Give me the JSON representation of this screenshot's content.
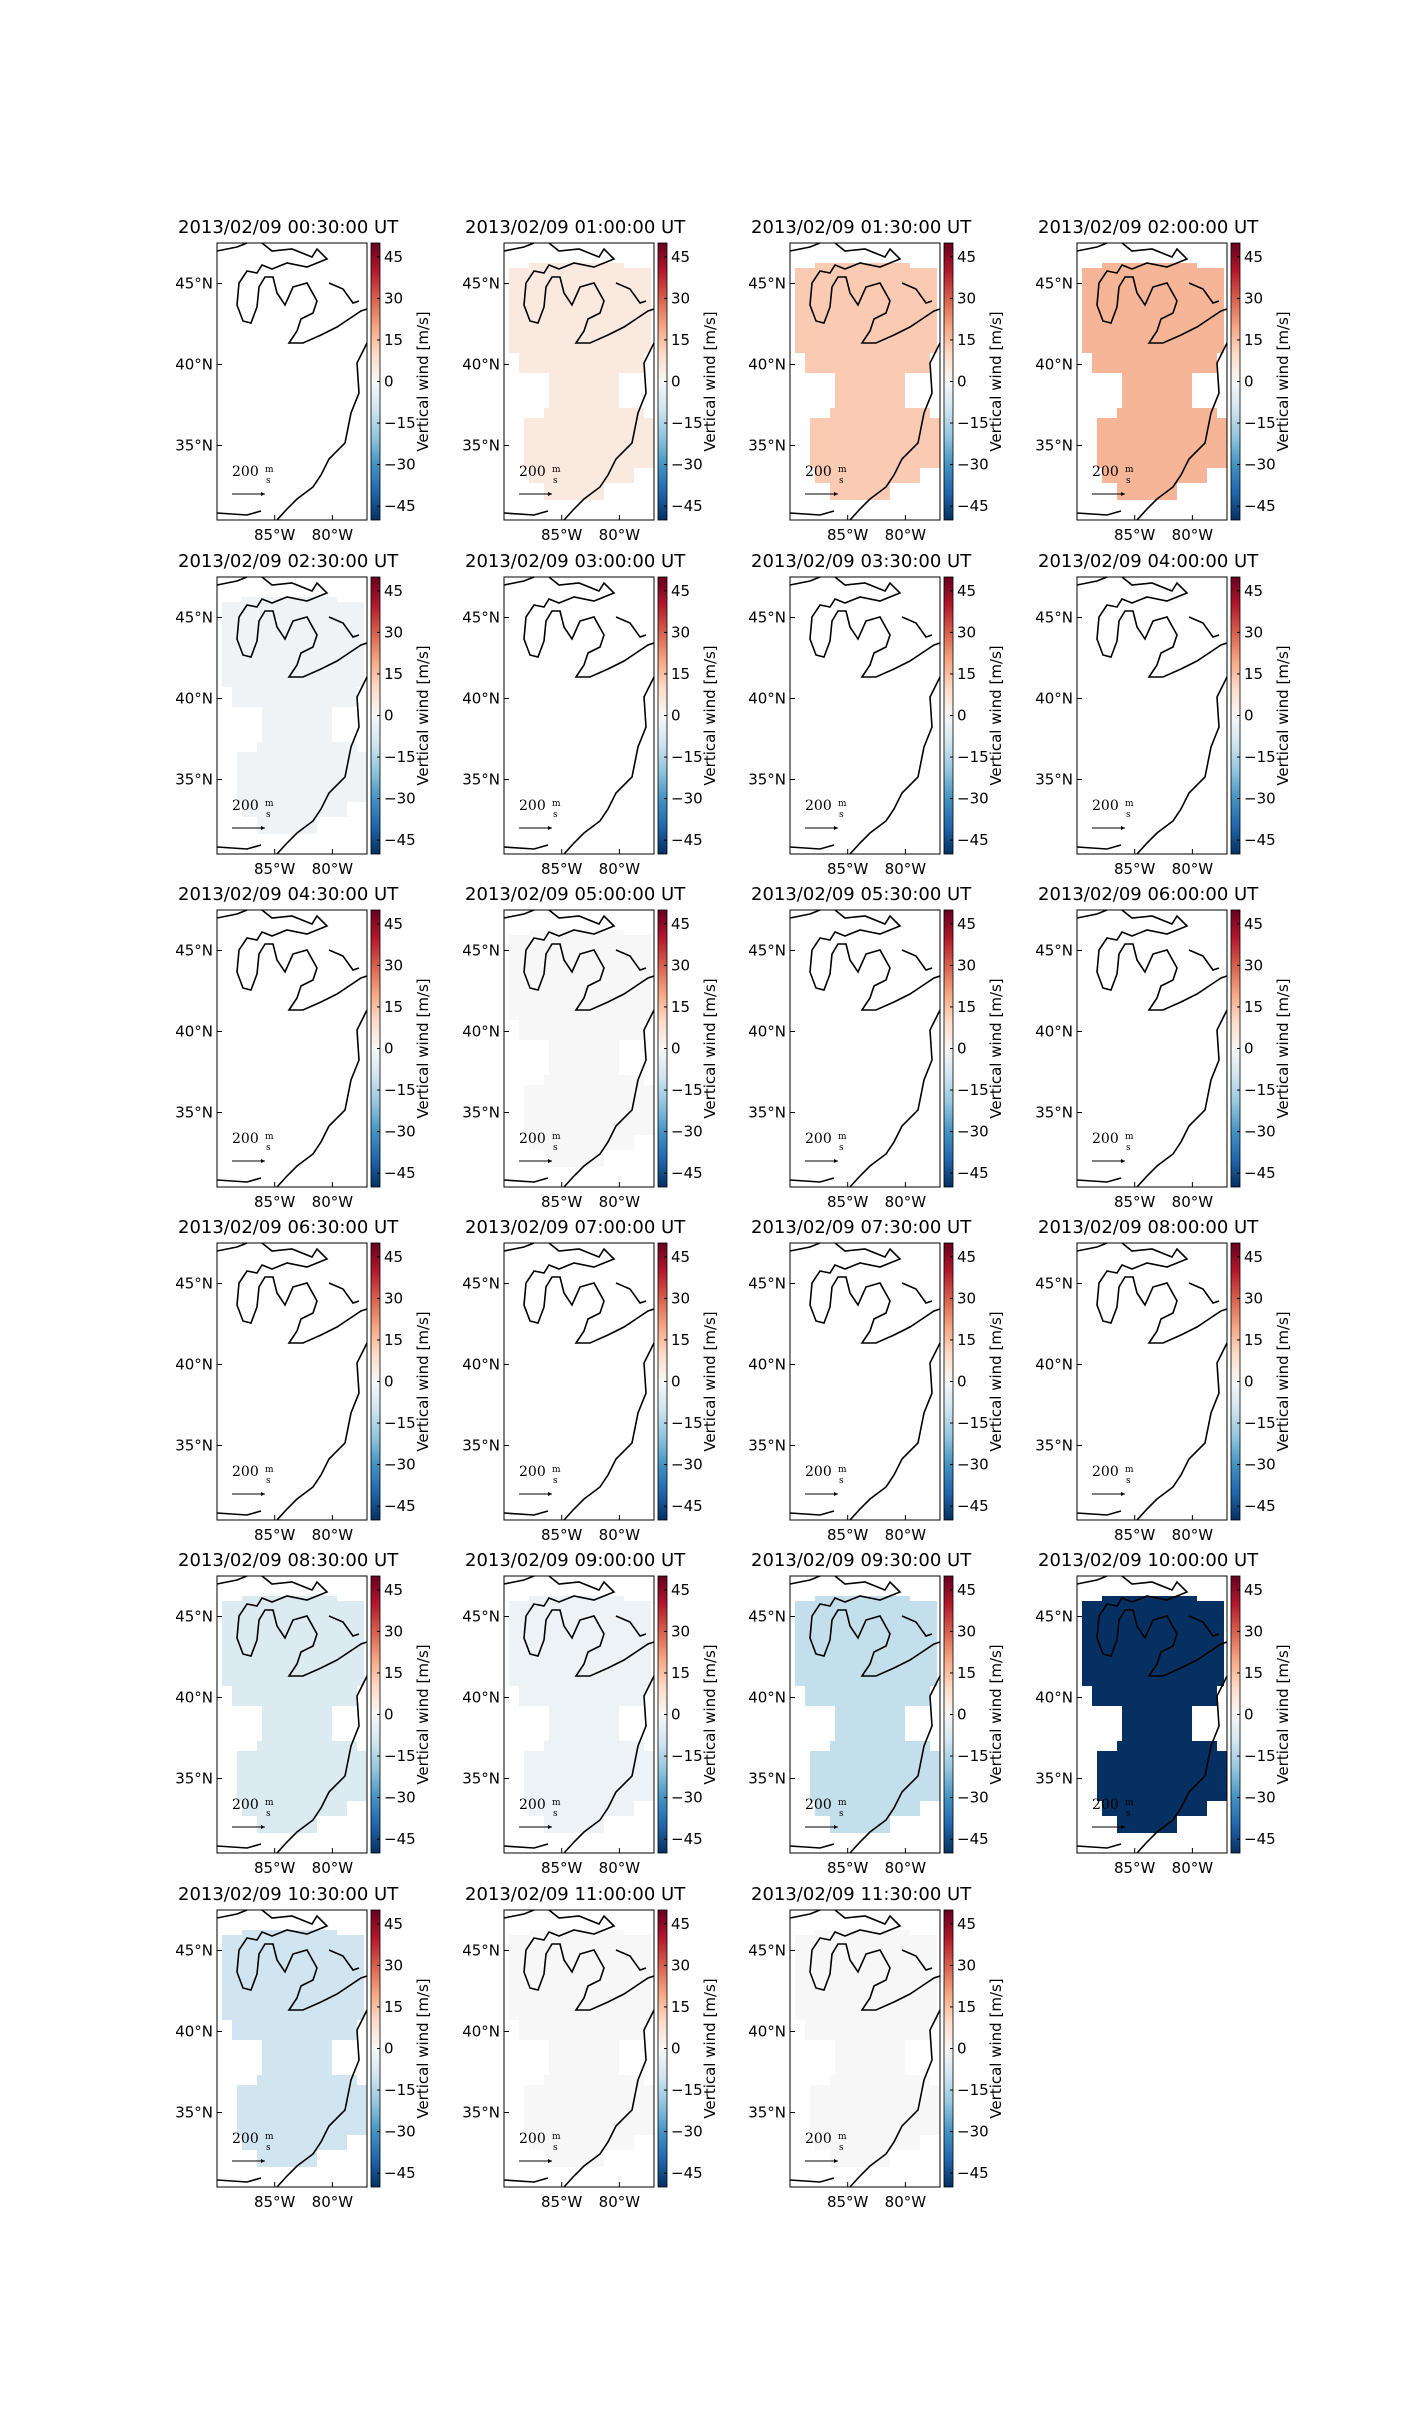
{
  "axes": {
    "xlim": [
      -90,
      -77
    ],
    "ylim": [
      30.4,
      47.5
    ],
    "xticks": [
      {
        "value": -85,
        "label": "85°W"
      },
      {
        "value": -80,
        "label": "80°W"
      }
    ],
    "yticks": [
      {
        "value": 35,
        "label": "35°N"
      },
      {
        "value": 40,
        "label": "40°N"
      },
      {
        "value": 45,
        "label": "45°N"
      }
    ],
    "colorbar_label": "Vertical wind [m/s]",
    "clim": [
      -50,
      50
    ],
    "cticks": [
      {
        "value": 45,
        "label": "45"
      },
      {
        "value": 30,
        "label": "30"
      },
      {
        "value": 15,
        "label": "15"
      },
      {
        "value": 0,
        "label": "0"
      },
      {
        "value": -15,
        "label": "−15"
      },
      {
        "value": -30,
        "label": "−30"
      },
      {
        "value": -45,
        "label": "−45"
      }
    ],
    "colormap": [
      "#053061",
      "#2166ac",
      "#4393c3",
      "#92c5de",
      "#d1e5f0",
      "#f7f7f7",
      "#fddbc7",
      "#f4a582",
      "#d6604d",
      "#b2182b",
      "#67001f"
    ],
    "quiver_key": "200",
    "quiver_key_unit_top": "m",
    "quiver_key_unit_bottom": "s"
  },
  "chart_data": [
    {
      "type": "map",
      "title": "2013/02/09 00:30:00 UT",
      "value": null
    },
    {
      "type": "map",
      "title": "2013/02/09 01:00:00 UT",
      "value": 5
    },
    {
      "type": "map",
      "title": "2013/02/09 01:30:00 UT",
      "value": 13
    },
    {
      "type": "map",
      "title": "2013/02/09 02:00:00 UT",
      "value": 17
    },
    {
      "type": "map",
      "title": "2013/02/09 02:30:00 UT",
      "value": -2
    },
    {
      "type": "map",
      "title": "2013/02/09 03:00:00 UT",
      "value": null
    },
    {
      "type": "map",
      "title": "2013/02/09 03:30:00 UT",
      "value": null
    },
    {
      "type": "map",
      "title": "2013/02/09 04:00:00 UT",
      "value": null
    },
    {
      "type": "map",
      "title": "2013/02/09 04:30:00 UT",
      "value": null
    },
    {
      "type": "map",
      "title": "2013/02/09 05:00:00 UT",
      "value": 0
    },
    {
      "type": "map",
      "title": "2013/02/09 05:30:00 UT",
      "value": null
    },
    {
      "type": "map",
      "title": "2013/02/09 06:00:00 UT",
      "value": null
    },
    {
      "type": "map",
      "title": "2013/02/09 06:30:00 UT",
      "value": null
    },
    {
      "type": "map",
      "title": "2013/02/09 07:00:00 UT",
      "value": null
    },
    {
      "type": "map",
      "title": "2013/02/09 07:30:00 UT",
      "value": null
    },
    {
      "type": "map",
      "title": "2013/02/09 08:00:00 UT",
      "value": null
    },
    {
      "type": "map",
      "title": "2013/02/09 08:30:00 UT",
      "value": -7
    },
    {
      "type": "map",
      "title": "2013/02/09 09:00:00 UT",
      "value": -3
    },
    {
      "type": "map",
      "title": "2013/02/09 09:30:00 UT",
      "value": -12
    },
    {
      "type": "map",
      "title": "2013/02/09 10:00:00 UT",
      "value": -50
    },
    {
      "type": "map",
      "title": "2013/02/09 10:30:00 UT",
      "value": -10
    },
    {
      "type": "map",
      "title": "2013/02/09 11:00:00 UT",
      "value": 0
    },
    {
      "type": "map",
      "title": "2013/02/09 11:30:00 UT",
      "value": 0
    }
  ]
}
